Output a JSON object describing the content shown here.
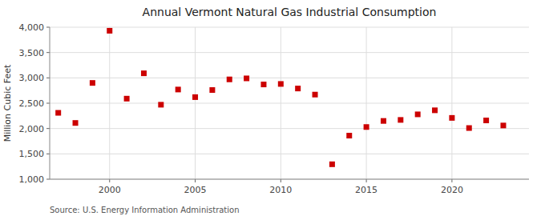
{
  "chart_data": {
    "type": "scatter",
    "title": "Annual Vermont Natural Gas Industrial Consumption",
    "ylabel": "Million Cubic Feet",
    "source": "Source: U.S. Energy Information Administration",
    "x": [
      1997,
      1998,
      1999,
      2000,
      2001,
      2002,
      2003,
      2004,
      2005,
      2006,
      2007,
      2008,
      2009,
      2010,
      2011,
      2012,
      2013,
      2014,
      2015,
      2016,
      2017,
      2018,
      2019,
      2020,
      2021,
      2022,
      2023
    ],
    "values": [
      2310,
      2110,
      2900,
      3930,
      2590,
      3090,
      2470,
      2770,
      2620,
      2760,
      2970,
      2990,
      2870,
      2880,
      2790,
      2670,
      1295,
      1860,
      2030,
      2150,
      2170,
      2280,
      2360,
      2210,
      2010,
      2160,
      2060
    ],
    "color": "#cc0000",
    "marker": "square",
    "xlim": [
      1996.5,
      2024.5
    ],
    "xticks": [
      2000,
      2005,
      2010,
      2015,
      2020
    ],
    "ylim": [
      1000,
      4000
    ],
    "yticks": [
      {
        "value": 1000,
        "label": "1,000"
      },
      {
        "value": 1500,
        "label": "1,500"
      },
      {
        "value": 2000,
        "label": "2,000"
      },
      {
        "value": 2500,
        "label": "2,500"
      },
      {
        "value": 3000,
        "label": "3,000"
      },
      {
        "value": 3500,
        "label": "3,500"
      },
      {
        "value": 4000,
        "label": "4,000"
      }
    ],
    "grid": true
  }
}
